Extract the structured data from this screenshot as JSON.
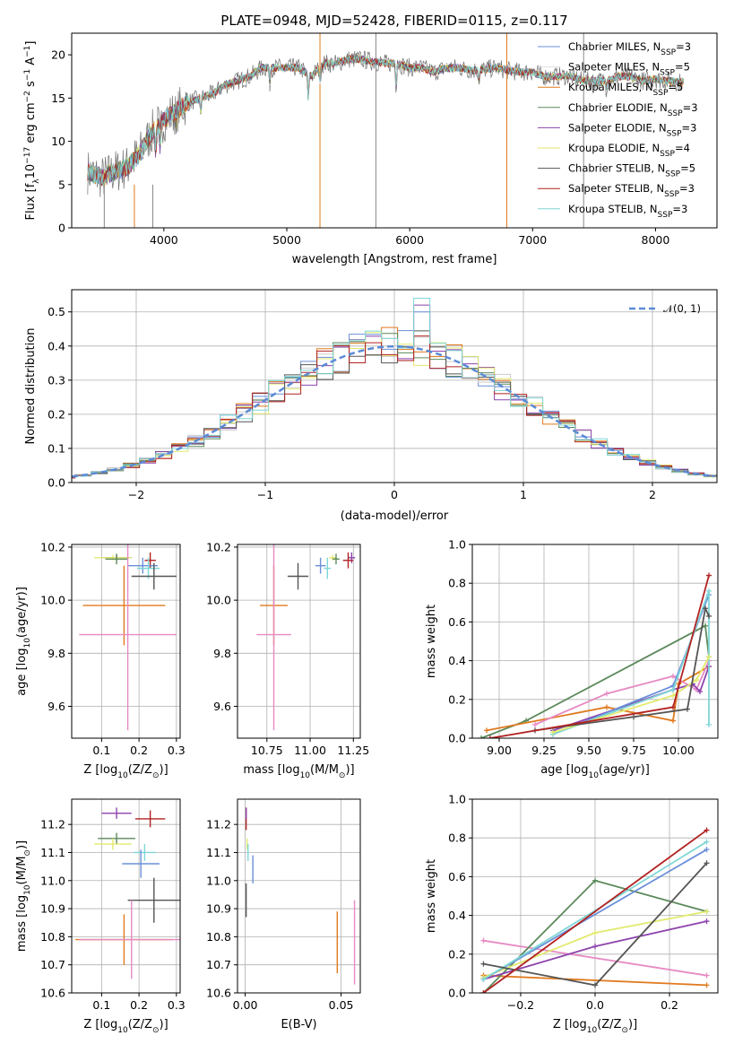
{
  "colors": {
    "Chabrier MILES": "#6a8fd9",
    "Salpeter MILES": "#e0e0e0",
    "Kroupa MILES": "#e07a1f",
    "Chabrier ELODIE": "#5c8a5c",
    "Salpeter ELODIE": "#8e44ad",
    "Kroupa ELODIE": "#e2ea6e",
    "Chabrier STELIB": "#555555",
    "Salpeter STELIB": "#b22222",
    "Kroupa STELIB": "#7fd6d6",
    "pink": "#e78ac3",
    "gaussian": "#5b8bd6"
  },
  "chart_data": [
    {
      "id": "spectrum",
      "type": "line",
      "title": "PLATE=0948, MJD=52428, FIBERID=0115, z=0.117",
      "xlabel": "wavelength [Angstrom, rest frame]",
      "ylabel": "Flux [f",
      "ylabel_sub": "λ",
      "ylabel_rest": "10",
      "ylabel_exp": "−17",
      "ylabel_tail": " erg cm",
      "ylabel_exp2": "−2",
      "ylabel_tail2": " s",
      "ylabel_exp3": "−1",
      "ylabel_tail3": " A",
      "ylabel_exp4": "−1",
      "ylabel_end": "]",
      "xlim": [
        3250,
        8500
      ],
      "ylim": [
        0,
        22.5
      ],
      "xticks": [
        "4000",
        "5000",
        "6000",
        "7000",
        "8000"
      ],
      "yticks": [
        "0",
        "5",
        "10",
        "15",
        "20"
      ],
      "grid": false,
      "legend_position": "right",
      "legend": [
        {
          "name": "Chabrier MILES, N",
          "sub": "SSP",
          "tail": "=3",
          "color": "#6a8fd9"
        },
        {
          "name": "Salpeter MILES, N",
          "sub": "SSP",
          "tail": "=5",
          "color": "#e0e0e0"
        },
        {
          "name": "Kroupa MILES, N",
          "sub": "SSP",
          "tail": "=5",
          "color": "#e07a1f"
        },
        {
          "name": "Chabrier ELODIE, N",
          "sub": "SSP",
          "tail": "=3",
          "color": "#5c8a5c"
        },
        {
          "name": "Salpeter ELODIE, N",
          "sub": "SSP",
          "tail": "=3",
          "color": "#8e44ad"
        },
        {
          "name": "Kroupa ELODIE, N",
          "sub": "SSP",
          "tail": "=4",
          "color": "#e2ea6e"
        },
        {
          "name": "Chabrier STELIB, N",
          "sub": "SSP",
          "tail": "=5",
          "color": "#555555"
        },
        {
          "name": "Salpeter STELIB, N",
          "sub": "SSP",
          "tail": "=3",
          "color": "#b22222"
        },
        {
          "name": "Kroupa STELIB, N",
          "sub": "SSP",
          "tail": "=3",
          "color": "#7fd6d6"
        }
      ],
      "continuum": [
        [
          3380,
          6.5
        ],
        [
          3500,
          5.8
        ],
        [
          3600,
          6.5
        ],
        [
          3700,
          7
        ],
        [
          3800,
          8.5
        ],
        [
          3900,
          11
        ],
        [
          4000,
          12.5
        ],
        [
          4100,
          13.5
        ],
        [
          4200,
          14.5
        ],
        [
          4300,
          15
        ],
        [
          4400,
          15.5
        ],
        [
          4500,
          16.5
        ],
        [
          4600,
          17
        ],
        [
          4700,
          17.5
        ],
        [
          4800,
          18.5
        ],
        [
          4900,
          18.5
        ],
        [
          5000,
          18.5
        ],
        [
          5100,
          18.5
        ],
        [
          5200,
          17.5
        ],
        [
          5300,
          19
        ],
        [
          5400,
          19
        ],
        [
          5500,
          19.5
        ],
        [
          5600,
          19.5
        ],
        [
          5700,
          19.2
        ],
        [
          5800,
          19
        ],
        [
          5900,
          19
        ],
        [
          6000,
          18.5
        ],
        [
          6100,
          18.5
        ],
        [
          6200,
          18
        ],
        [
          6300,
          18.5
        ],
        [
          6400,
          18.5
        ],
        [
          6500,
          18.2
        ],
        [
          6600,
          18.3
        ],
        [
          6700,
          18.5
        ],
        [
          6800,
          18.2
        ],
        [
          6900,
          18
        ],
        [
          7000,
          18
        ],
        [
          7100,
          17.5
        ],
        [
          7200,
          17.5
        ],
        [
          7300,
          17.6
        ],
        [
          7400,
          17
        ],
        [
          7500,
          17
        ],
        [
          7600,
          17
        ],
        [
          7700,
          17.5
        ],
        [
          7800,
          17.5
        ],
        [
          7900,
          17
        ],
        [
          8000,
          17.2
        ],
        [
          8100,
          17
        ],
        [
          8230,
          16.8
        ]
      ]
    },
    {
      "id": "residuals",
      "type": "step",
      "xlabel": "(data-model)/error",
      "ylabel": "Normed distribution",
      "xlim": [
        -2.5,
        2.5
      ],
      "ylim": [
        0,
        0.565
      ],
      "xticks": [
        "−2",
        "−1",
        "0",
        "1",
        "2"
      ],
      "yticks": [
        "0.0",
        "0.1",
        "0.2",
        "0.3",
        "0.4",
        "0.5"
      ],
      "grid": true,
      "legend": {
        "label": "𝒩(0, 1)",
        "color": "#5b8bd6"
      }
    },
    {
      "id": "age_vs_Z",
      "type": "errorbar",
      "xlabel": "Z [log",
      "xlabel_sub": "10",
      "xlabel_tail": "(Z/Z",
      "xlabel_sub2": "⊙",
      "xlabel_end": ")]",
      "ylabel": "age  [log",
      "ylabel_sub": "10",
      "ylabel_tail": "(age/yr)]",
      "xlim": [
        0.02,
        0.31
      ],
      "ylim": [
        9.48,
        10.21
      ],
      "xticks": [
        "0.1",
        "0.2",
        "0.3"
      ],
      "yticks": [
        "9.6",
        "9.8",
        "10.0",
        "10.2"
      ],
      "grid": true,
      "points": [
        {
          "c": "#b22222",
          "x": 0.23,
          "xe": 0.015,
          "y": 10.15,
          "ye": 0.03
        },
        {
          "c": "#8e44ad",
          "x": 0.14,
          "xe": 0.04,
          "y": 10.16,
          "ye": 0.01
        },
        {
          "c": "#e2ea6e",
          "x": 0.13,
          "xe": 0.05,
          "y": 10.16,
          "ye": 0.01
        },
        {
          "c": "#5c8a5c",
          "x": 0.14,
          "xe": 0.03,
          "y": 10.155,
          "ye": 0.02
        },
        {
          "c": "#6a8fd9",
          "x": 0.21,
          "xe": 0.04,
          "y": 10.13,
          "ye": 0.03
        },
        {
          "c": "#7fd6d6",
          "x": 0.225,
          "xe": 0.03,
          "y": 10.12,
          "ye": 0.04
        },
        {
          "c": "#555555",
          "x": 0.24,
          "xe": 0.06,
          "y": 10.09,
          "ye": 0.05
        },
        {
          "c": "#e07a1f",
          "x": 0.16,
          "xe": 0.11,
          "y": 9.98,
          "ye": 0.15
        },
        {
          "c": "#e78ac3",
          "x": 0.17,
          "xe": 0.13,
          "y": 9.87,
          "ye": 0.36
        }
      ]
    },
    {
      "id": "age_vs_mass",
      "type": "errorbar",
      "xlabel": "mass [log",
      "xlabel_sub": "10",
      "xlabel_tail": "(M/M",
      "xlabel_sub2": "⊙",
      "xlabel_end": ")]",
      "xlim": [
        10.58,
        11.29
      ],
      "ylim": [
        9.48,
        10.21
      ],
      "xticks": [
        "10.75",
        "11.00",
        "11.25"
      ],
      "yticks": [
        "9.6",
        "9.8",
        "10.0",
        "10.2"
      ],
      "grid": true,
      "points": [
        {
          "c": "#8e44ad",
          "x": 11.24,
          "xe": 0.02,
          "y": 10.16,
          "ye": 0.02
        },
        {
          "c": "#b22222",
          "x": 11.22,
          "xe": 0.03,
          "y": 10.15,
          "ye": 0.03
        },
        {
          "c": "#e2ea6e",
          "x": 11.13,
          "xe": 0.02,
          "y": 10.16,
          "ye": 0.01
        },
        {
          "c": "#5c8a5c",
          "x": 11.15,
          "xe": 0.02,
          "y": 10.155,
          "ye": 0.02
        },
        {
          "c": "#7fd6d6",
          "x": 11.1,
          "xe": 0.02,
          "y": 10.12,
          "ye": 0.04
        },
        {
          "c": "#6a8fd9",
          "x": 11.06,
          "xe": 0.03,
          "y": 10.13,
          "ye": 0.03
        },
        {
          "c": "#555555",
          "x": 10.93,
          "xe": 0.06,
          "y": 10.09,
          "ye": 0.05
        },
        {
          "c": "#e07a1f",
          "x": 10.79,
          "xe": 0.08,
          "y": 9.98,
          "ye": 0.15
        },
        {
          "c": "#e78ac3",
          "x": 10.79,
          "xe": 0.1,
          "y": 9.87,
          "ye": 0.36
        }
      ]
    },
    {
      "id": "weights_vs_age",
      "type": "line",
      "xlabel": "age  [log",
      "xlabel_sub": "10",
      "xlabel_tail": "(age/yr)]",
      "ylabel": "mass weight",
      "xlim": [
        8.85,
        10.22
      ],
      "ylim": [
        0,
        1
      ],
      "xticks": [
        "9.00",
        "9.25",
        "9.50",
        "9.75",
        "10.00"
      ],
      "yticks": [
        "0.0",
        "0.2",
        "0.4",
        "0.6",
        "0.8",
        "1.0"
      ],
      "grid": true,
      "series": [
        {
          "c": "#5c8a5c",
          "pts": [
            [
              8.9,
              0
            ],
            [
              9.15,
              0.09
            ],
            [
              10.15,
              0.58
            ],
            [
              10.17,
              0.42
            ]
          ]
        },
        {
          "c": "#e07a1f",
          "pts": [
            [
              8.93,
              0.04
            ],
            [
              9.6,
              0.16
            ],
            [
              9.97,
              0.09
            ],
            [
              10.0,
              0.28
            ],
            [
              10.17,
              0.37
            ]
          ]
        },
        {
          "c": "#e78ac3",
          "pts": [
            [
              9.2,
              0.07
            ],
            [
              9.6,
              0.23
            ],
            [
              9.97,
              0.32
            ],
            [
              10.1,
              0.25
            ],
            [
              10.17,
              0.4
            ]
          ]
        },
        {
          "c": "#8e44ad",
          "pts": [
            [
              9.3,
              0.04
            ],
            [
              9.97,
              0.25
            ],
            [
              10.08,
              0.28
            ],
            [
              10.12,
              0.24
            ],
            [
              10.17,
              0.37
            ]
          ]
        },
        {
          "c": "#6a8fd9",
          "pts": [
            [
              9.3,
              0.02
            ],
            [
              9.97,
              0.27
            ],
            [
              10.17,
              0.74
            ]
          ]
        },
        {
          "c": "#7fd6d6",
          "pts": [
            [
              9.3,
              0.02
            ],
            [
              9.97,
              0.25
            ],
            [
              10.17,
              0.76
            ],
            [
              10.17,
              0.07
            ]
          ]
        },
        {
          "c": "#e2ea6e",
          "pts": [
            [
              9.3,
              0.03
            ],
            [
              9.97,
              0.22
            ],
            [
              10.1,
              0.3
            ],
            [
              10.17,
              0.42
            ]
          ]
        },
        {
          "c": "#555555",
          "pts": [
            [
              9.2,
              0.04
            ],
            [
              9.75,
              0.11
            ],
            [
              10.05,
              0.15
            ],
            [
              10.15,
              0.67
            ],
            [
              10.17,
              0.63
            ]
          ]
        },
        {
          "c": "#b22222",
          "pts": [
            [
              8.95,
              0
            ],
            [
              9.97,
              0.16
            ],
            [
              10.17,
              0.84
            ]
          ]
        }
      ]
    },
    {
      "id": "mass_vs_Z",
      "type": "errorbar",
      "xlabel": "Z [log",
      "xlabel_sub": "10",
      "xlabel_tail": "(Z/Z",
      "xlabel_sub2": "⊙",
      "xlabel_end": ")]",
      "ylabel": "mass [log",
      "ylabel_sub": "10",
      "ylabel_tail": "(M/M",
      "ylabel_sub2": "⊙",
      "ylabel_end": ")]",
      "xlim": [
        0.02,
        0.31
      ],
      "ylim": [
        10.6,
        11.29
      ],
      "xticks": [
        "0.1",
        "0.2",
        "0.3"
      ],
      "yticks": [
        "10.6",
        "10.7",
        "10.8",
        "10.9",
        "11.0",
        "11.1",
        "11.2"
      ],
      "grid": true,
      "points": [
        {
          "c": "#8e44ad",
          "x": 0.14,
          "xe": 0.04,
          "y": 11.24,
          "ye": 0.02
        },
        {
          "c": "#b22222",
          "x": 0.23,
          "xe": 0.04,
          "y": 11.22,
          "ye": 0.03
        },
        {
          "c": "#5c8a5c",
          "x": 0.14,
          "xe": 0.05,
          "y": 11.15,
          "ye": 0.02
        },
        {
          "c": "#e2ea6e",
          "x": 0.13,
          "xe": 0.05,
          "y": 11.13,
          "ye": 0.02
        },
        {
          "c": "#7fd6d6",
          "x": 0.215,
          "xe": 0.03,
          "y": 11.1,
          "ye": 0.03
        },
        {
          "c": "#6a8fd9",
          "x": 0.205,
          "xe": 0.05,
          "y": 11.06,
          "ye": 0.05
        },
        {
          "c": "#555555",
          "x": 0.24,
          "xe": 0.07,
          "y": 10.93,
          "ye": 0.08
        },
        {
          "c": "#e07a1f",
          "x": 0.16,
          "xe": 0.13,
          "y": 10.79,
          "ye": 0.09
        },
        {
          "c": "#e78ac3",
          "x": 0.18,
          "xe": 0.14,
          "y": 10.79,
          "ye": 0.14
        }
      ]
    },
    {
      "id": "mass_vs_ebv",
      "type": "errorbar",
      "xlabel": "E(B-V)",
      "xlim": [
        -0.004,
        0.06
      ],
      "ylim": [
        10.6,
        11.29
      ],
      "xticks": [
        "0.00",
        "0.05"
      ],
      "yticks": [
        "10.6",
        "10.7",
        "10.8",
        "10.9",
        "11.0",
        "11.1",
        "11.2"
      ],
      "grid": true,
      "points": [
        {
          "c": "#b22222",
          "x": 0.0005,
          "xe": 0,
          "y": 11.22,
          "ye": 0.04
        },
        {
          "c": "#8e44ad",
          "x": 0.0005,
          "xe": 0,
          "y": 11.24,
          "ye": 0.02
        },
        {
          "c": "#e2ea6e",
          "x": 0.001,
          "xe": 0,
          "y": 11.13,
          "ye": 0.02
        },
        {
          "c": "#7fd6d6",
          "x": 0.0015,
          "xe": 0,
          "y": 11.1,
          "ye": 0.03
        },
        {
          "c": "#6a8fd9",
          "x": 0.004,
          "xe": 0,
          "y": 11.04,
          "ye": 0.05
        },
        {
          "c": "#555555",
          "x": 0.0005,
          "xe": 0,
          "y": 10.93,
          "ye": 0.06
        },
        {
          "c": "#e07a1f",
          "x": 0.048,
          "xe": 0,
          "y": 10.78,
          "ye": 0.11
        },
        {
          "c": "#e78ac3",
          "x": 0.057,
          "xe": 0,
          "y": 10.78,
          "ye": 0.15
        }
      ]
    },
    {
      "id": "weights_vs_Z",
      "type": "line",
      "xlabel": "Z [log",
      "xlabel_sub": "10",
      "xlabel_tail": "(Z/Z",
      "xlabel_sub2": "⊙",
      "xlabel_end": ")]",
      "ylabel": "mass weight",
      "xlim": [
        -0.33,
        0.33
      ],
      "ylim": [
        0,
        1
      ],
      "xticks": [
        "−0.2",
        "0.0",
        "0.2"
      ],
      "yticks": [
        "0.0",
        "0.2",
        "0.4",
        "0.6",
        "0.8",
        "1.0"
      ],
      "grid": true,
      "series": [
        {
          "c": "#e07a1f",
          "pts": [
            [
              -0.3,
              0.09
            ],
            [
              0.3,
              0.04
            ]
          ]
        },
        {
          "c": "#e78ac3",
          "pts": [
            [
              -0.3,
              0.27
            ],
            [
              0.3,
              0.09
            ]
          ]
        },
        {
          "c": "#5c8a5c",
          "pts": [
            [
              -0.3,
              0
            ],
            [
              0,
              0.58
            ],
            [
              0.3,
              0.42
            ]
          ]
        },
        {
          "c": "#8e44ad",
          "pts": [
            [
              -0.3,
              0.07
            ],
            [
              0,
              0.24
            ],
            [
              0.3,
              0.37
            ]
          ]
        },
        {
          "c": "#e2ea6e",
          "pts": [
            [
              -0.3,
              0.08
            ],
            [
              0,
              0.31
            ],
            [
              0.3,
              0.42
            ]
          ]
        },
        {
          "c": "#6a8fd9",
          "pts": [
            [
              -0.3,
              0.07
            ],
            [
              0.3,
              0.74
            ]
          ]
        },
        {
          "c": "#7fd6d6",
          "pts": [
            [
              -0.3,
              0.07
            ],
            [
              0.3,
              0.78
            ]
          ]
        },
        {
          "c": "#555555",
          "pts": [
            [
              -0.3,
              0.15
            ],
            [
              0,
              0.04
            ],
            [
              0.3,
              0.67
            ]
          ]
        },
        {
          "c": "#b22222",
          "pts": [
            [
              -0.3,
              0
            ],
            [
              0.3,
              0.84
            ]
          ]
        }
      ]
    }
  ]
}
